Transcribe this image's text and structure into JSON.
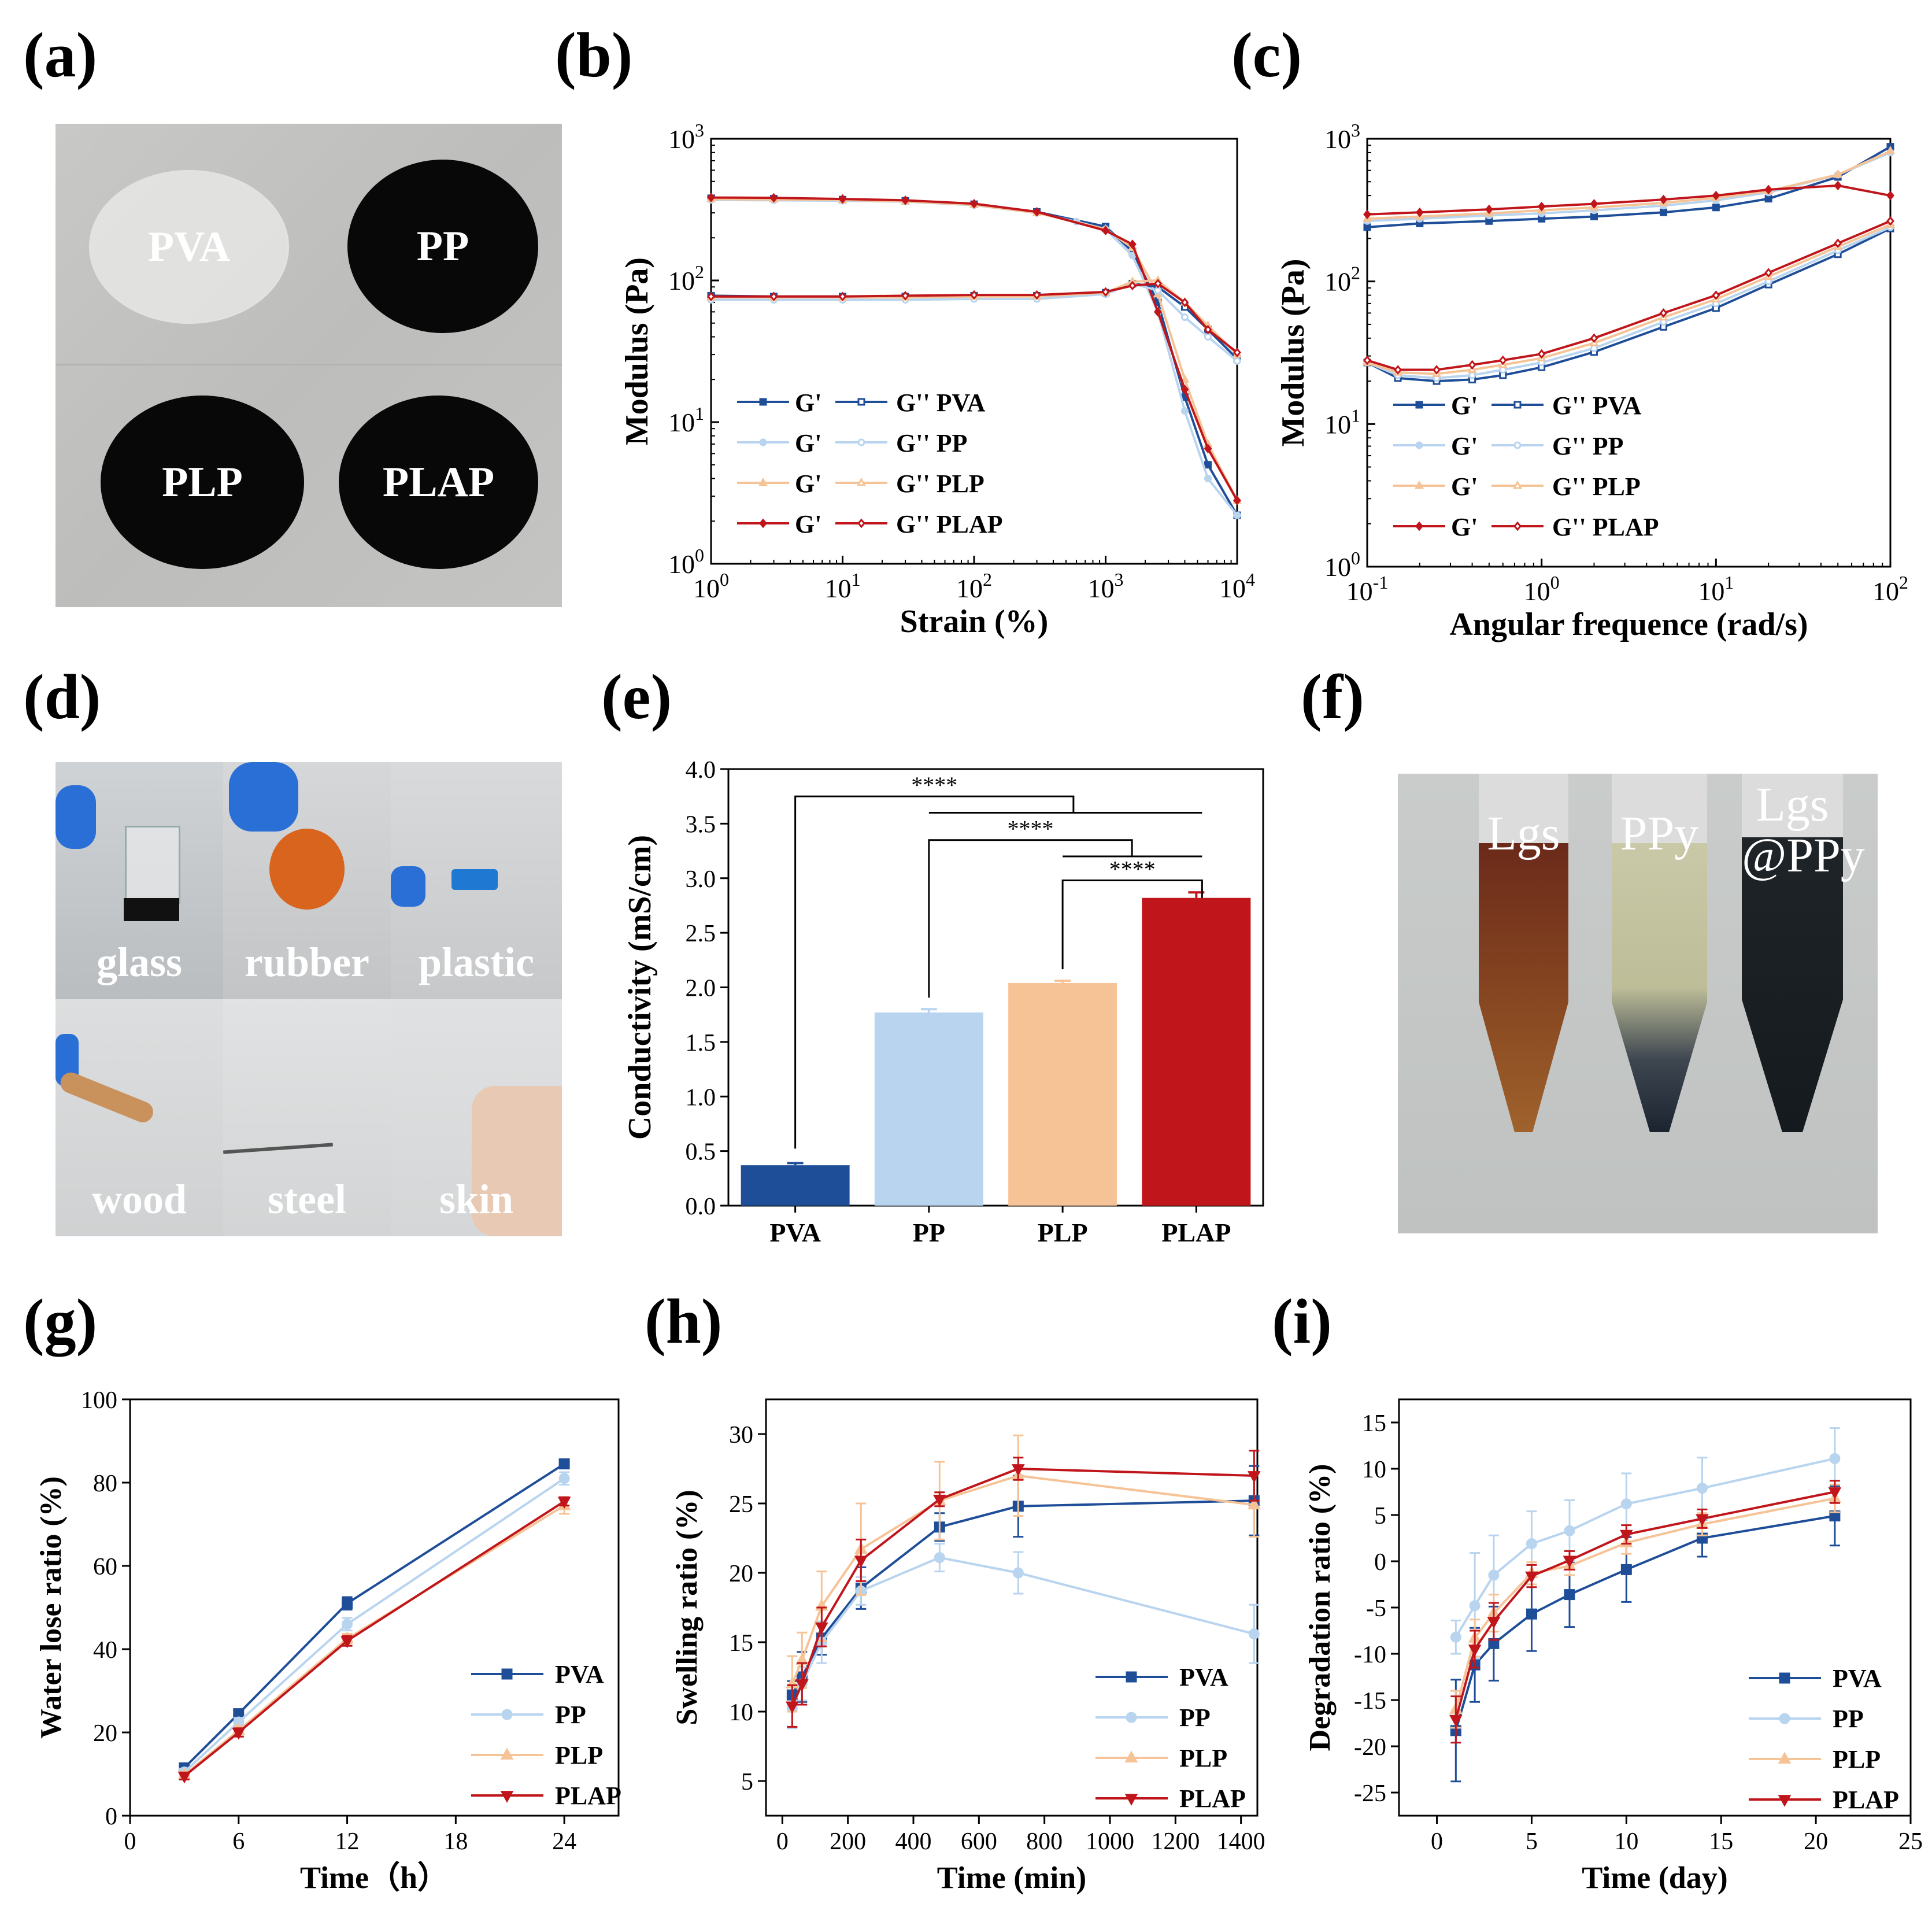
{
  "panel_labels": {
    "a": "(a)",
    "b": "(b)",
    "c": "(c)",
    "d": "(d)",
    "e": "(e)",
    "f": "(f)",
    "g": "(g)",
    "h": "(h)",
    "i": "(i)"
  },
  "photos": {
    "a": {
      "samples": [
        "PVA",
        "PP",
        "PLP",
        "PLAP"
      ]
    },
    "d": {
      "substrates": [
        "glass",
        "rubber",
        "plastic",
        "wood",
        "steel",
        "skin"
      ]
    },
    "f": {
      "tubes": [
        "Lgs",
        "PPy",
        "Lgs\n@PPy"
      ]
    }
  },
  "colors": {
    "PVA": "#1f4e99",
    "PP": "#b8d4ef",
    "PLP": "#f6c396",
    "PLAP": "#c0161b"
  },
  "chart_data": [
    {
      "id": "b",
      "type": "line",
      "xscale": "log",
      "yscale": "log",
      "xlabel": "Strain (%)",
      "ylabel": "Modulus (Pa)",
      "xlim": [
        1,
        10000
      ],
      "ylim": [
        1,
        1000
      ],
      "xticks": [
        {
          "v": 1,
          "b": "10",
          "e": "0"
        },
        {
          "v": 10,
          "b": "10",
          "e": "1"
        },
        {
          "v": 100,
          "b": "10",
          "e": "2"
        },
        {
          "v": 1000,
          "b": "10",
          "e": "3"
        },
        {
          "v": 10000,
          "b": "10",
          "e": "4"
        }
      ],
      "yticks": [
        {
          "v": 1,
          "b": "10",
          "e": "0"
        },
        {
          "v": 10,
          "b": "10",
          "e": "1"
        },
        {
          "v": 100,
          "b": "10",
          "e": "2"
        },
        {
          "v": 1000,
          "b": "10",
          "e": "3"
        }
      ],
      "legend": [
        {
          "a": "G'",
          "b": "G''",
          "name": "PVA"
        },
        {
          "a": "G'",
          "b": "G''",
          "name": "PP"
        },
        {
          "a": "G'",
          "b": "G''",
          "name": "PLP"
        },
        {
          "a": "G'",
          "b": "G''",
          "name": "PLAP"
        }
      ],
      "series": [
        {
          "name": "PVA",
          "kind": "G'",
          "x": [
            1,
            3,
            10,
            30,
            100,
            300,
            1000,
            1600,
            2500,
            4000,
            6000,
            10000
          ],
          "y": [
            380,
            378,
            372,
            365,
            345,
            305,
            240,
            160,
            70,
            15,
            5,
            2.2
          ]
        },
        {
          "name": "PP",
          "kind": "G'",
          "x": [
            1,
            3,
            10,
            30,
            100,
            300,
            600,
            1000,
            1600,
            2500,
            4000,
            6000,
            10000
          ],
          "y": [
            370,
            368,
            365,
            360,
            340,
            300,
            260,
            230,
            150,
            60,
            12,
            4,
            2.2
          ]
        },
        {
          "name": "PLP",
          "kind": "G'",
          "x": [
            1,
            3,
            10,
            30,
            100,
            300,
            1000,
            1600,
            2500,
            4000,
            6000,
            10000
          ],
          "y": [
            375,
            373,
            370,
            362,
            342,
            300,
            230,
            170,
            80,
            20,
            7,
            2.8
          ]
        },
        {
          "name": "PLAP",
          "kind": "G'",
          "x": [
            1,
            3,
            10,
            30,
            100,
            300,
            1000,
            1600,
            2500,
            4000,
            6000,
            10000
          ],
          "y": [
            385,
            383,
            376,
            368,
            348,
            305,
            225,
            180,
            60,
            17,
            6.5,
            2.8
          ]
        },
        {
          "name": "PVA",
          "kind": "G''",
          "x": [
            1,
            3,
            10,
            30,
            100,
            300,
            1000,
            1600,
            2500,
            4000,
            6000,
            10000
          ],
          "y": [
            78,
            77,
            77,
            77,
            78,
            78,
            82,
            95,
            90,
            65,
            45,
            28
          ]
        },
        {
          "name": "PP",
          "kind": "G''",
          "x": [
            1,
            3,
            10,
            30,
            100,
            300,
            1000,
            1600,
            2500,
            4000,
            6000,
            10000
          ],
          "y": [
            73,
            73,
            73,
            73,
            74,
            74,
            80,
            95,
            85,
            55,
            40,
            27
          ]
        },
        {
          "name": "PLP",
          "kind": "G''",
          "x": [
            1,
            3,
            10,
            30,
            100,
            300,
            1000,
            1600,
            2500,
            4000,
            6000,
            10000
          ],
          "y": [
            76,
            76,
            76,
            76,
            77,
            77,
            82,
            98,
            100,
            70,
            48,
            30
          ]
        },
        {
          "name": "PLAP",
          "kind": "G''",
          "x": [
            1,
            3,
            10,
            30,
            100,
            300,
            1000,
            1600,
            2500,
            4000,
            6000,
            10000
          ],
          "y": [
            77,
            77,
            77,
            78,
            79,
            79,
            83,
            92,
            95,
            70,
            45,
            31
          ]
        }
      ]
    },
    {
      "id": "c",
      "type": "line",
      "xscale": "log",
      "yscale": "log",
      "xlabel": "Angular frequence (rad/s)",
      "ylabel": "Modulus (Pa)",
      "xlim": [
        0.1,
        100
      ],
      "ylim": [
        1,
        1000
      ],
      "xticks": [
        {
          "v": 0.1,
          "b": "10",
          "e": "-1"
        },
        {
          "v": 1,
          "b": "10",
          "e": "0"
        },
        {
          "v": 10,
          "b": "10",
          "e": "1"
        },
        {
          "v": 100,
          "b": "10",
          "e": "2"
        }
      ],
      "yticks": [
        {
          "v": 1,
          "b": "10",
          "e": "0"
        },
        {
          "v": 10,
          "b": "10",
          "e": "1"
        },
        {
          "v": 100,
          "b": "10",
          "e": "2"
        },
        {
          "v": 1000,
          "b": "10",
          "e": "3"
        }
      ],
      "legend": [
        {
          "a": "G'",
          "b": "G''",
          "name": "PVA"
        },
        {
          "a": "G'",
          "b": "G''",
          "name": "PP"
        },
        {
          "a": "G'",
          "b": "G''",
          "name": "PLP"
        },
        {
          "a": "G'",
          "b": "G''",
          "name": "PLAP"
        }
      ],
      "series": [
        {
          "name": "PVA",
          "kind": "G'",
          "x": [
            0.1,
            0.2,
            0.5,
            1,
            2,
            5,
            10,
            20,
            50,
            100
          ],
          "y": [
            240,
            255,
            265,
            275,
            285,
            305,
            330,
            380,
            540,
            880
          ]
        },
        {
          "name": "PP",
          "kind": "G'",
          "x": [
            0.1,
            0.2,
            0.5,
            1,
            2,
            5,
            10,
            20,
            50,
            100
          ],
          "y": [
            265,
            275,
            290,
            300,
            315,
            340,
            370,
            420,
            560,
            800
          ]
        },
        {
          "name": "PLP",
          "kind": "G'",
          "x": [
            0.1,
            0.2,
            0.5,
            1,
            2,
            5,
            10,
            20,
            50,
            100
          ],
          "y": [
            275,
            285,
            300,
            315,
            330,
            355,
            385,
            430,
            560,
            820
          ]
        },
        {
          "name": "PLAP",
          "kind": "G'",
          "x": [
            0.1,
            0.2,
            0.5,
            1,
            2,
            5,
            10,
            20,
            50,
            100
          ],
          "y": [
            295,
            305,
            320,
            335,
            350,
            375,
            400,
            440,
            470,
            400
          ]
        },
        {
          "name": "PVA",
          "kind": "G''",
          "x": [
            0.1,
            0.15,
            0.25,
            0.4,
            0.6,
            1,
            2,
            5,
            10,
            20,
            50,
            100
          ],
          "y": [
            27,
            21,
            20,
            20.5,
            22,
            25,
            32,
            48,
            65,
            95,
            155,
            235
          ]
        },
        {
          "name": "PP",
          "kind": "G''",
          "x": [
            0.1,
            0.15,
            0.25,
            0.4,
            0.6,
            1,
            2,
            5,
            10,
            20,
            50,
            100
          ],
          "y": [
            27,
            22,
            21,
            22,
            24,
            27,
            34,
            52,
            70,
            100,
            165,
            240
          ]
        },
        {
          "name": "PLP",
          "kind": "G''",
          "x": [
            0.1,
            0.15,
            0.25,
            0.4,
            0.6,
            1,
            2,
            5,
            10,
            20,
            50,
            100
          ],
          "y": [
            27,
            23,
            22.5,
            24,
            26,
            29,
            37,
            56,
            75,
            108,
            175,
            250
          ]
        },
        {
          "name": "PLAP",
          "kind": "G''",
          "x": [
            0.1,
            0.15,
            0.25,
            0.4,
            0.6,
            1,
            2,
            5,
            10,
            20,
            50,
            100
          ],
          "y": [
            28,
            24,
            24,
            26,
            28,
            31,
            40,
            60,
            80,
            115,
            185,
            265
          ]
        }
      ]
    },
    {
      "id": "e",
      "type": "bar",
      "xlabel": "",
      "ylabel": "Conductivity (mS/cm)",
      "ylim": [
        0,
        4
      ],
      "yticks": [
        "0.0",
        "0.5",
        "1.0",
        "1.5",
        "2.0",
        "2.5",
        "3.0",
        "3.5",
        "4.0"
      ],
      "categories": [
        "PVA",
        "PP",
        "PLP",
        "PLAP"
      ],
      "values": [
        0.37,
        1.77,
        2.04,
        2.82
      ],
      "errors": [
        0.02,
        0.03,
        0.02,
        0.05
      ],
      "significance": [
        {
          "label": "****"
        },
        {
          "label": "****"
        },
        {
          "label": "****"
        }
      ]
    },
    {
      "id": "g",
      "type": "line",
      "xlabel": "Time（h）",
      "ylabel": "Water lose ratio (%)",
      "xlim": [
        0,
        27
      ],
      "ylim": [
        0,
        100
      ],
      "xticks": [
        "0",
        "6",
        "12",
        "18",
        "24"
      ],
      "yticks": [
        "0",
        "20",
        "40",
        "60",
        "80",
        "100"
      ],
      "legend": [
        "PVA",
        "PP",
        "PLP",
        "PLAP"
      ],
      "series": [
        {
          "name": "PVA",
          "x": [
            3,
            6,
            12,
            24
          ],
          "y": [
            11.5,
            24.5,
            51,
            84.5
          ],
          "err": [
            0.8,
            1,
            1.5,
            0.8
          ]
        },
        {
          "name": "PP",
          "x": [
            3,
            6,
            12,
            24
          ],
          "y": [
            10.5,
            22.5,
            46,
            81
          ],
          "err": [
            0.8,
            1,
            1.5,
            1.5
          ]
        },
        {
          "name": "PLP",
          "x": [
            3,
            6,
            12,
            24
          ],
          "y": [
            9.8,
            20.5,
            42.5,
            74.5
          ],
          "err": [
            0.8,
            1,
            1.2,
            2
          ]
        },
        {
          "name": "PLAP",
          "x": [
            3,
            6,
            12,
            24
          ],
          "y": [
            9.5,
            20,
            42,
            75.5
          ],
          "err": [
            0.8,
            1,
            1.2,
            1
          ]
        }
      ]
    },
    {
      "id": "h",
      "type": "line",
      "xlabel": "Time (min)",
      "ylabel": "Swelling ratio (%)",
      "xlim": [
        -50,
        1450
      ],
      "ylim": [
        2.5,
        32.5
      ],
      "xticks": [
        "0",
        "200",
        "400",
        "600",
        "800",
        "1000",
        "1200",
        "1400"
      ],
      "yticks": [
        "5",
        "10",
        "15",
        "20",
        "25",
        "30"
      ],
      "legend": [
        "PVA",
        "PP",
        "PLP",
        "PLAP"
      ],
      "series": [
        {
          "name": "PVA",
          "x": [
            30,
            60,
            120,
            240,
            480,
            720,
            1440
          ],
          "y": [
            11.2,
            12.5,
            15.3,
            18.9,
            23.3,
            24.8,
            25.2
          ],
          "err": [
            1.0,
            1.8,
            1.2,
            1.5,
            1.0,
            2.2,
            2.5
          ]
        },
        {
          "name": "PP",
          "x": [
            30,
            60,
            120,
            240,
            480,
            720,
            1440
          ],
          "y": [
            10.3,
            12.0,
            15.0,
            18.7,
            21.1,
            20.0,
            15.6
          ],
          "err": [
            1.5,
            1.2,
            1.5,
            1.0,
            1.0,
            1.5,
            2.1
          ]
        },
        {
          "name": "PLP",
          "x": [
            30,
            60,
            120,
            240,
            480,
            720,
            1440
          ],
          "y": [
            12.0,
            13.7,
            17.6,
            21.7,
            25.2,
            27.0,
            24.9
          ],
          "err": [
            2.0,
            2.0,
            2.5,
            3.3,
            2.8,
            2.9,
            2.3
          ]
        },
        {
          "name": "PLAP",
          "x": [
            30,
            60,
            120,
            240,
            480,
            720,
            1440
          ],
          "y": [
            10.4,
            12.0,
            16.1,
            20.9,
            25.3,
            27.5,
            27.0
          ],
          "err": [
            1.5,
            1.5,
            1.4,
            1.5,
            0.5,
            0.8,
            1.8
          ]
        }
      ]
    },
    {
      "id": "i",
      "type": "line",
      "xlabel": "Time (day)",
      "ylabel": "Degradation ratio (%)",
      "xlim": [
        -2,
        25
      ],
      "ylim": [
        -27.5,
        17.5
      ],
      "xticks": [
        "0",
        "5",
        "10",
        "15",
        "20",
        "25"
      ],
      "yticks": [
        "-25",
        "-20",
        "-15",
        "-10",
        "-5",
        "0",
        "5",
        "10",
        "15"
      ],
      "legend": [
        "PVA",
        "PP",
        "PLP",
        "PLAP"
      ],
      "series": [
        {
          "name": "PVA",
          "x": [
            1,
            2,
            3,
            5,
            7,
            10,
            14,
            21
          ],
          "y": [
            -18.3,
            -11.2,
            -8.9,
            -5.7,
            -3.6,
            -0.9,
            2.5,
            4.9
          ],
          "err": [
            5.5,
            4,
            4,
            4,
            3.5,
            3.5,
            2,
            3.2
          ]
        },
        {
          "name": "PP",
          "x": [
            1,
            2,
            3,
            5,
            7,
            10,
            14,
            21
          ],
          "y": [
            -8.2,
            -4.8,
            -1.5,
            1.9,
            3.3,
            6.2,
            7.9,
            11.1
          ],
          "err": [
            1.8,
            5.7,
            4.3,
            3.5,
            3.3,
            3.3,
            3.3,
            3.3
          ]
        },
        {
          "name": "PLP",
          "x": [
            1,
            2,
            3,
            5,
            7,
            10,
            14,
            21
          ],
          "y": [
            -16.0,
            -8.3,
            -5.6,
            -1.3,
            -0.5,
            2.0,
            4.0,
            6.8
          ],
          "err": [
            2,
            2,
            2,
            1.2,
            1,
            1.2,
            1.2,
            1.5
          ]
        },
        {
          "name": "PLAP",
          "x": [
            1,
            2,
            3,
            5,
            7,
            10,
            14,
            21
          ],
          "y": [
            -17.1,
            -9.5,
            -6.5,
            -1.6,
            0.1,
            2.9,
            4.6,
            7.5
          ],
          "err": [
            2.5,
            2,
            2,
            1.2,
            1,
            1,
            1,
            1.2
          ]
        }
      ]
    }
  ]
}
